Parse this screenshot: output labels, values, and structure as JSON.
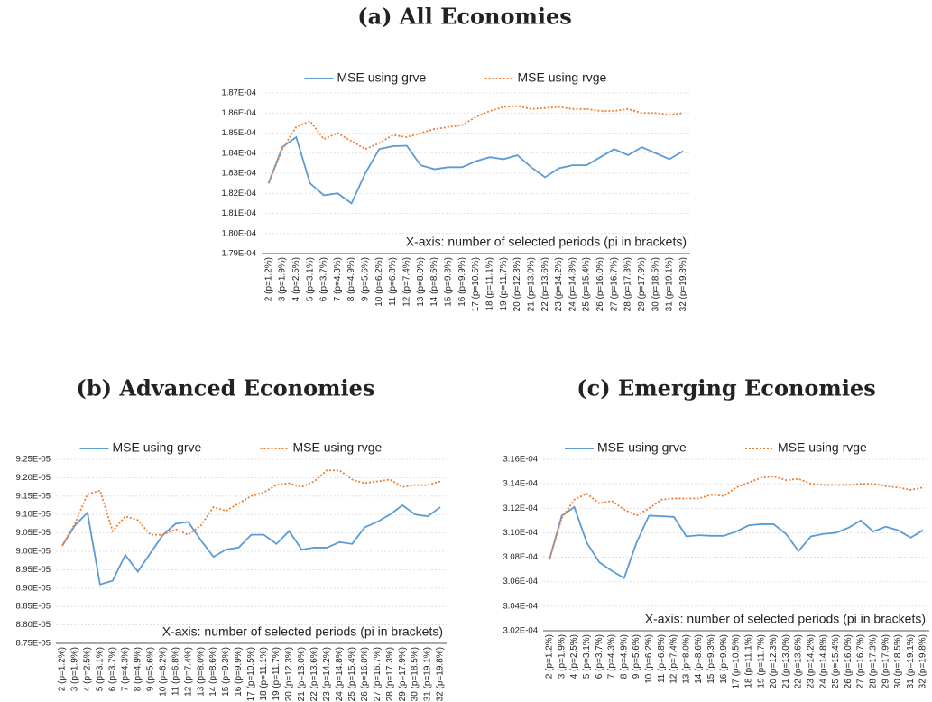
{
  "chart_data": [
    {
      "type": "line",
      "title": "(a) All Economies",
      "annotation": "X-axis: number of selected periods (pi in brackets)",
      "categories": [
        "2 (p=1.2%)",
        "3 (p=1.9%)",
        "4 (p=2.5%)",
        "5 (p=3.1%)",
        "6 (p=3.7%)",
        "7 (p=4.3%)",
        "8 (p=4.9%)",
        "9 (p=5.6%)",
        "10 (p=6.2%)",
        "11 (p=6.8%)",
        "12 (p=7.4%)",
        "13 (p=8.0%)",
        "14 (p=8.6%)",
        "15 (p=9.3%)",
        "16 (p=9.9%)",
        "17 (p=10.5%)",
        "18 (p=11.1%)",
        "19 (p=11.7%)",
        "20 (p=12.3%)",
        "21 (p=13.0%)",
        "22 (p=13.6%)",
        "23 (p=14.2%)",
        "24 (p=14.8%)",
        "25 (p=15.4%)",
        "26 (p=16.0%)",
        "27 (p=16.7%)",
        "28 (p=17.3%)",
        "29 (p=17.9%)",
        "30 (p=18.5%)",
        "31 (p=19.1%)",
        "32 (p=19.8%)"
      ],
      "series": [
        {
          "name": "MSE using grve",
          "color": "#5b9bd5",
          "dash": "solid",
          "values": [
            0.0001825,
            0.0001843,
            0.0001848,
            0.0001825,
            0.0001819,
            0.000182,
            0.0001815,
            0.000183,
            0.0001842,
            0.00018435,
            0.00018437,
            0.0001834,
            0.0001832,
            0.0001833,
            0.0001833,
            0.0001836,
            0.0001838,
            0.0001837,
            0.0001839,
            0.0001833,
            0.0001828,
            0.00018325,
            0.0001834,
            0.0001834,
            0.0001838,
            0.0001842,
            0.0001839,
            0.0001843,
            0.000184,
            0.0001837,
            0.0001841
          ]
        },
        {
          "name": "MSE using rvge",
          "color": "#ed7d31",
          "dash": "dotted",
          "values": [
            0.0001825,
            0.0001842,
            0.0001853,
            0.0001856,
            0.0001847,
            0.000185,
            0.0001846,
            0.0001842,
            0.0001845,
            0.0001849,
            0.0001848,
            0.000185,
            0.0001852,
            0.0001853,
            0.0001854,
            0.0001858,
            0.0001861,
            0.0001863,
            0.00018635,
            0.0001862,
            0.00018625,
            0.0001863,
            0.0001862,
            0.0001862,
            0.0001861,
            0.0001861,
            0.0001862,
            0.000186,
            0.000186,
            0.0001859,
            0.000186
          ]
        }
      ],
      "ylim": [
        0.000179,
        0.000187
      ],
      "yticks": [
        {
          "value": 0.000179,
          "label": "1.79E-04"
        },
        {
          "value": 0.00018,
          "label": "1.80E-04"
        },
        {
          "value": 0.000181,
          "label": "1.81E-04"
        },
        {
          "value": 0.000182,
          "label": "1.82E-04"
        },
        {
          "value": 0.000183,
          "label": "1.83E-04"
        },
        {
          "value": 0.000184,
          "label": "1.84E-04"
        },
        {
          "value": 0.000185,
          "label": "1.85E-04"
        },
        {
          "value": 0.000186,
          "label": "1.86E-04"
        },
        {
          "value": 0.000187,
          "label": "1.87E-04"
        }
      ],
      "grid": true,
      "legend": "top"
    },
    {
      "type": "line",
      "title": "(b) Advanced Economies",
      "annotation": "X-axis: number of selected periods (pi in brackets)",
      "categories": [
        "2 (p=1.2%)",
        "3 (p=1.9%)",
        "4 (p=2.5%)",
        "5 (p=3.1%)",
        "6 (p=3.7%)",
        "7 (p=4.3%)",
        "8 (p=4.9%)",
        "9 (p=5.6%)",
        "10 (p=6.2%)",
        "11 (p=6.8%)",
        "12 (p=7.4%)",
        "13 (p=8.0%)",
        "14 (p=8.6%)",
        "15 (p=9.3%)",
        "16 (p=9.9%)",
        "17 (p=10.5%)",
        "18 (p=11.1%)",
        "19 (p=11.7%)",
        "20 (p=12.3%)",
        "21 (p=13.0%)",
        "22 (p=13.6%)",
        "23 (p=14.2%)",
        "24 (p=14.8%)",
        "25 (p=15.4%)",
        "26 (p=16.0%)",
        "27 (p=16.7%)",
        "28 (p=17.3%)",
        "29 (p=17.9%)",
        "30 (p=18.5%)",
        "31 (p=19.1%)",
        "32 (p=19.8%)"
      ],
      "series": [
        {
          "name": "MSE using grve",
          "color": "#5b9bd5",
          "dash": "solid",
          "values": [
            9.015e-05,
            9.07e-05,
            9.105e-05,
            8.91e-05,
            8.92e-05,
            8.99e-05,
            8.945e-05,
            8.995e-05,
            9.045e-05,
            9.075e-05,
            9.08e-05,
            9.03e-05,
            8.985e-05,
            9.005e-05,
            9.01e-05,
            9.045e-05,
            9.045e-05,
            9.02e-05,
            9.055e-05,
            9.005e-05,
            9.01e-05,
            9.01e-05,
            9.025e-05,
            9.02e-05,
            9.065e-05,
            9.08e-05,
            9.1e-05,
            9.125e-05,
            9.1e-05,
            9.095e-05,
            9.12e-05
          ]
        },
        {
          "name": "MSE using rvge",
          "color": "#ed7d31",
          "dash": "dotted",
          "values": [
            9.015e-05,
            9.075e-05,
            9.155e-05,
            9.165e-05,
            9.055e-05,
            9.095e-05,
            9.085e-05,
            9.045e-05,
            9.045e-05,
            9.06e-05,
            9.045e-05,
            9.07e-05,
            9.12e-05,
            9.11e-05,
            9.13e-05,
            9.15e-05,
            9.16e-05,
            9.18e-05,
            9.185e-05,
            9.175e-05,
            9.19e-05,
            9.22e-05,
            9.22e-05,
            9.195e-05,
            9.185e-05,
            9.19e-05,
            9.195e-05,
            9.175e-05,
            9.18e-05,
            9.18e-05,
            9.19e-05
          ]
        }
      ],
      "ylim": [
        8.75e-05,
        9.25e-05
      ],
      "yticks": [
        {
          "value": 8.75e-05,
          "label": "8.75E-05"
        },
        {
          "value": 8.8e-05,
          "label": "8.80E-05"
        },
        {
          "value": 8.85e-05,
          "label": "8.85E-05"
        },
        {
          "value": 8.9e-05,
          "label": "8.90E-05"
        },
        {
          "value": 8.95e-05,
          "label": "8.95E-05"
        },
        {
          "value": 9e-05,
          "label": "9.00E-05"
        },
        {
          "value": 9.05e-05,
          "label": "9.05E-05"
        },
        {
          "value": 9.1e-05,
          "label": "9.10E-05"
        },
        {
          "value": 9.15e-05,
          "label": "9.15E-05"
        },
        {
          "value": 9.2e-05,
          "label": "9.20E-05"
        },
        {
          "value": 9.25e-05,
          "label": "9.25E-05"
        }
      ],
      "grid": true,
      "legend": "top"
    },
    {
      "type": "line",
      "title": "(c) Emerging Economies",
      "annotation": "X-axis: number of selected periods (pi in brackets)",
      "categories": [
        "2 (p=1.2%)",
        "3 (p=1.9%)",
        "4 (p=2.5%)",
        "5 (p=3.1%)",
        "6 (p=3.7%)",
        "7 (p=4.3%)",
        "8 (p=4.9%)",
        "9 (p=5.6%)",
        "10 (p=6.2%)",
        "11 (p=6.8%)",
        "12 (p=7.4%)",
        "13 (p=8.0%)",
        "14 (p=8.6%)",
        "15 (p=9.3%)",
        "16 (p=9.9%)",
        "17 (p=10.5%)",
        "18 (p=11.1%)",
        "19 (p=11.7%)",
        "20 (p=12.3%)",
        "21 (p=13.0%)",
        "22 (p=13.6%)",
        "23 (p=14.2%)",
        "24 (p=14.8%)",
        "25 (p=15.4%)",
        "26 (p=16.0%)",
        "27 (p=16.7%)",
        "28 (p=17.3%)",
        "29 (p=17.9%)",
        "30 (p=18.5%)",
        "31 (p=19.1%)",
        "32 (p=19.8%)"
      ],
      "series": [
        {
          "name": "MSE using grve",
          "color": "#5b9bd5",
          "dash": "solid",
          "values": [
            0.0003078,
            0.0003114,
            0.0003121,
            0.0003092,
            0.0003076,
            0.0003069,
            0.0003063,
            0.0003092,
            0.0003114,
            0.00031135,
            0.0003113,
            0.0003097,
            0.0003098,
            0.00030975,
            0.00030975,
            0.0003101,
            0.0003106,
            0.0003107,
            0.0003107,
            0.0003099,
            0.0003085,
            0.0003097,
            0.0003099,
            0.00031,
            0.0003104,
            0.000311,
            0.0003101,
            0.0003105,
            0.0003102,
            0.0003096,
            0.0003102
          ]
        },
        {
          "name": "MSE using rvge",
          "color": "#ed7d31",
          "dash": "dotted",
          "values": [
            0.0003078,
            0.0003112,
            0.0003127,
            0.0003132,
            0.0003124,
            0.0003126,
            0.0003119,
            0.0003114,
            0.000312,
            0.0003127,
            0.0003128,
            0.0003128,
            0.0003128,
            0.0003131,
            0.000313,
            0.0003137,
            0.0003141,
            0.0003145,
            0.0003146,
            0.0003143,
            0.0003144,
            0.000314,
            0.0003139,
            0.0003139,
            0.0003139,
            0.000314,
            0.000314,
            0.0003138,
            0.0003137,
            0.0003135,
            0.0003137
          ]
        }
      ],
      "ylim": [
        0.000302,
        0.000316
      ],
      "yticks": [
        {
          "value": 0.000302,
          "label": "3.02E-04"
        },
        {
          "value": 0.000304,
          "label": "3.04E-04"
        },
        {
          "value": 0.000306,
          "label": "3.06E-04"
        },
        {
          "value": 0.000308,
          "label": "3.08E-04"
        },
        {
          "value": 0.00031,
          "label": "3.10E-04"
        },
        {
          "value": 0.000312,
          "label": "3.12E-04"
        },
        {
          "value": 0.000314,
          "label": "3.14E-04"
        },
        {
          "value": 0.000316,
          "label": "3.16E-04"
        }
      ],
      "grid": true,
      "legend": "top"
    }
  ]
}
